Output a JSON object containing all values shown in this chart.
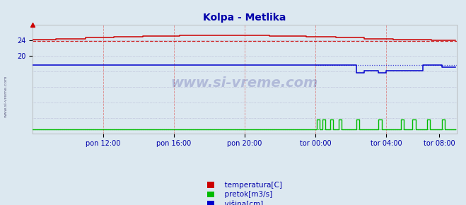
{
  "title": "Kolpa - Metlika",
  "title_color": "#0000aa",
  "bg_color": "#dce8f0",
  "plot_bg_color": "#dce8f0",
  "x_tick_labels": [
    "pon 12:00",
    "pon 16:00",
    "pon 20:00",
    "tor 00:00",
    "tor 04:00",
    "tor 08:00"
  ],
  "ylim": [
    0,
    28
  ],
  "xlim": [
    0,
    288
  ],
  "temp_color": "#cc0000",
  "pretok_color": "#00bb00",
  "visina_color": "#0000cc",
  "watermark": "www.si-vreme.com",
  "legend_labels": [
    "temperatura[C]",
    "pretok[m3/s]",
    "višina[cm]"
  ],
  "legend_colors": [
    "#cc0000",
    "#00bb00",
    "#0000cc"
  ],
  "vgrid_color": "#dd8888",
  "hgrid_color": "#aaaacc",
  "temp_avg": 23.85
}
